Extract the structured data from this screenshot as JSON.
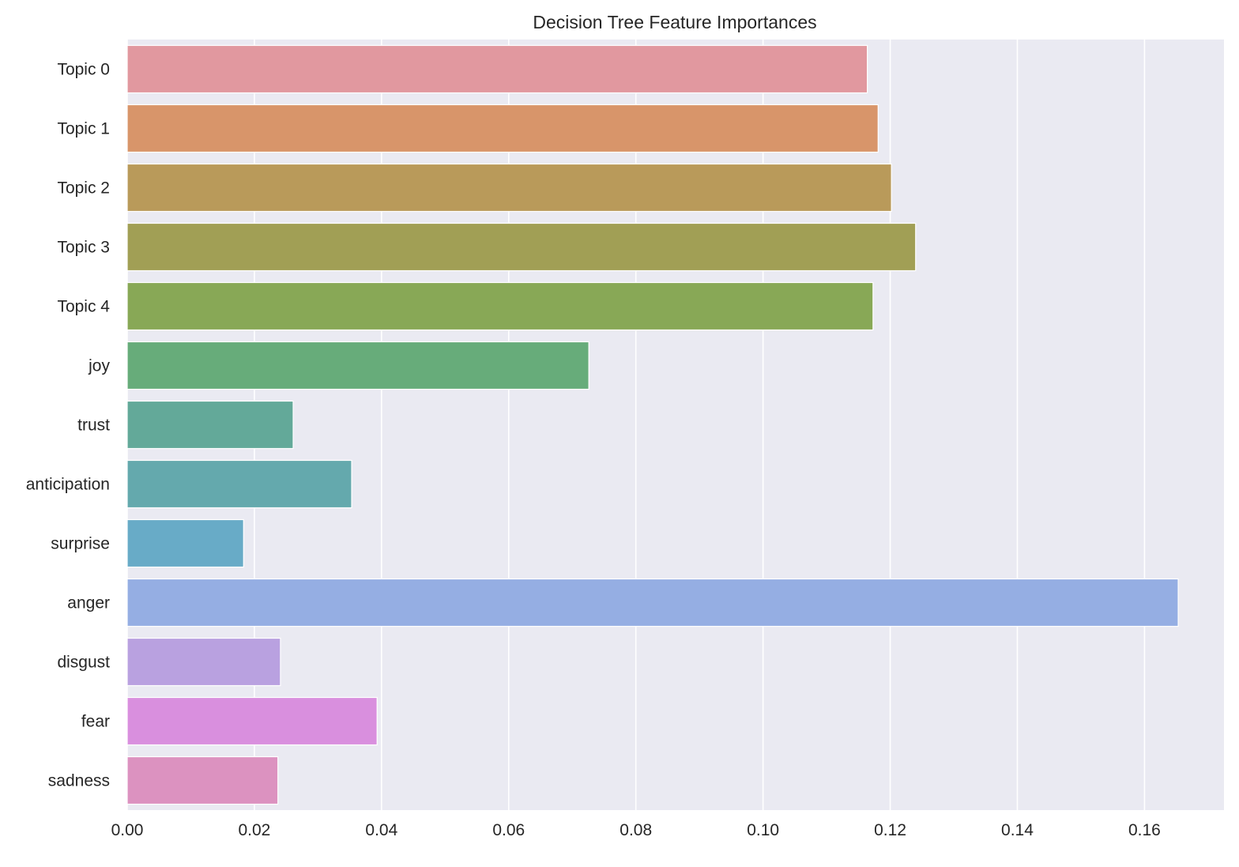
{
  "chart_data": {
    "type": "bar",
    "orientation": "horizontal",
    "title": "Decision Tree Feature Importances",
    "xlabel": "",
    "ylabel": "",
    "xlim": [
      0,
      0.1725
    ],
    "grid": true,
    "categories": [
      "Topic 0",
      "Topic 1",
      "Topic 2",
      "Topic 3",
      "Topic 4",
      "joy",
      "trust",
      "anticipation",
      "surprise",
      "anger",
      "disgust",
      "fear",
      "sadness"
    ],
    "values": [
      0.1164,
      0.1181,
      0.1202,
      0.124,
      0.1173,
      0.0726,
      0.0261,
      0.0353,
      0.0183,
      0.1653,
      0.0241,
      0.0393,
      0.0237
    ],
    "colors": [
      "#e1989f",
      "#d8956a",
      "#b99a5a",
      "#a19f55",
      "#88a856",
      "#67ac7a",
      "#63a999",
      "#64a9ad",
      "#68abc7",
      "#95aee3",
      "#b9a1e0",
      "#d98fde",
      "#dc92c0"
    ],
    "xticks": [
      0.0,
      0.02,
      0.04,
      0.06,
      0.08,
      0.1,
      0.12,
      0.14,
      0.16
    ],
    "xtick_labels": [
      "0.00",
      "0.02",
      "0.04",
      "0.06",
      "0.08",
      "0.10",
      "0.12",
      "0.14",
      "0.16"
    ]
  }
}
